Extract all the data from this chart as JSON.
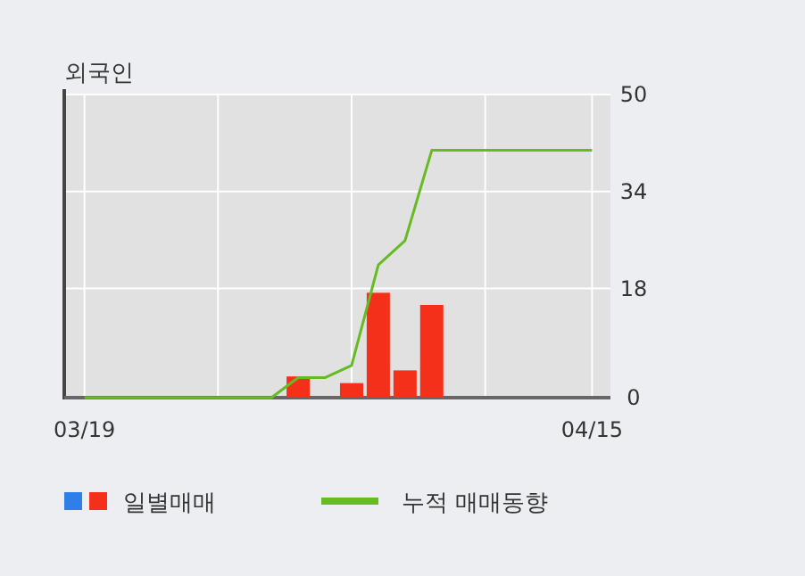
{
  "chart_data": {
    "type": "bar",
    "title": "외국인",
    "categories": [
      "03/19",
      null,
      null,
      null,
      null,
      null,
      null,
      null,
      null,
      null,
      null,
      null,
      null,
      null,
      null,
      null,
      null,
      null,
      null,
      "04/15"
    ],
    "series": [
      {
        "name": "일별매매",
        "color": "#f5301a",
        "values": [
          null,
          null,
          null,
          null,
          null,
          null,
          null,
          null,
          3.5,
          null,
          2.4,
          17.3,
          4.5,
          15.3,
          null,
          null,
          null,
          null,
          null,
          null
        ]
      },
      {
        "name": "누적 매매동향",
        "type": "line",
        "color": "#66bb22",
        "values": [
          0,
          0,
          0,
          0,
          0,
          0,
          0,
          0,
          3.3,
          3.3,
          5.3,
          21.9,
          25.9,
          40.8,
          40.8,
          40.8,
          40.8,
          40.8,
          40.8,
          40.8
        ]
      }
    ],
    "ylim": [
      0,
      50
    ],
    "yticks": [
      0,
      18,
      34,
      50
    ],
    "grid": true,
    "legend": "bottom"
  }
}
